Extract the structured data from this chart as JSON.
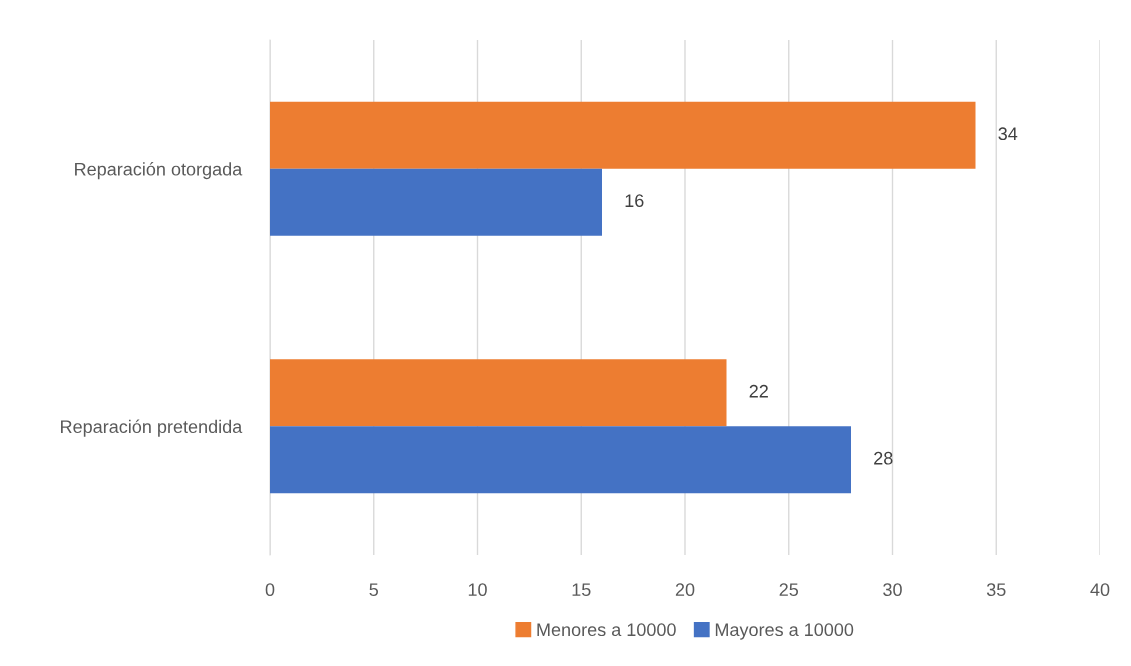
{
  "chart_data": {
    "type": "bar",
    "orientation": "horizontal",
    "categories": [
      "Reparación otorgada",
      "Reparación pretendida"
    ],
    "series": [
      {
        "name": "Menores a 10000",
        "color": "#ed7d31",
        "values": [
          34,
          22
        ]
      },
      {
        "name": "Mayores a 10000",
        "color": "#4472c4",
        "values": [
          16,
          28
        ]
      }
    ],
    "xlim": [
      0,
      40
    ],
    "xticks": [
      0,
      5,
      10,
      15,
      20,
      25,
      30,
      35,
      40
    ],
    "grid": "x",
    "legend": "bottom",
    "data_labels": true
  }
}
